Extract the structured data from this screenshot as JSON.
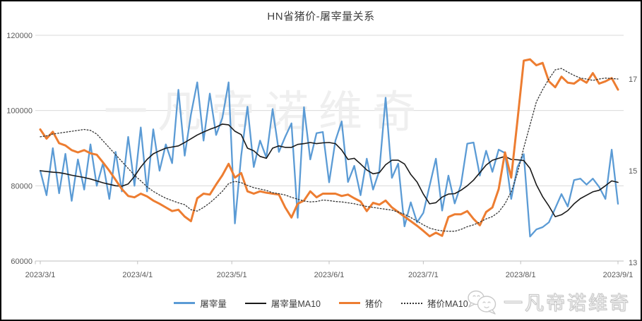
{
  "chart": {
    "title": "HN省猪价-屠宰量关系",
    "left_axis": {
      "tick_labels": [
        "120000",
        "100000",
        "80000",
        "60000"
      ],
      "tick_values": [
        120000,
        100000,
        80000,
        60000
      ]
    },
    "right_axis": {
      "tick_labels": [
        "17",
        "15",
        "13"
      ],
      "tick_values": [
        17,
        15,
        13
      ]
    },
    "x_axis": {
      "tick_labels": [
        "2023/3/1",
        "2023/4/1",
        "2023/5/1",
        "2023/6/1",
        "2023/7/1",
        "2023/8/1",
        "2023/9/1"
      ],
      "tick_day_offsets": [
        0,
        31,
        61,
        92,
        122,
        153,
        184
      ]
    },
    "colors": {
      "grid": "#D9D9D9",
      "axis": "#BFBFBF",
      "tick_text": "#595959",
      "title_text": "#404040",
      "blue": "#5B9BD5",
      "orange": "#ED7D31",
      "black": "#1A1A1A",
      "dotted": "#333333"
    }
  },
  "chart_data": {
    "type": "line",
    "title": "HN省猪价-屠宰量关系",
    "x_start": "2023/3/1",
    "x_end": "2023/9/1",
    "x_sample_interval_days": 2,
    "x_tick_labels": [
      "2023/3/1",
      "2023/4/1",
      "2023/5/1",
      "2023/6/1",
      "2023/7/1",
      "2023/8/1",
      "2023/9/1"
    ],
    "left_axis": {
      "range": [
        60000,
        120000
      ],
      "tick_step": 20000,
      "applies_to": "屠宰量"
    },
    "right_axis": {
      "range": [
        13,
        17.9
      ],
      "visible_ticks": [
        13,
        15,
        17
      ],
      "applies_to": "猪价"
    },
    "grid": true,
    "legend_position": "bottom",
    "series": [
      {
        "name": "屠宰量",
        "axis": "left",
        "color": "#5B9BD5",
        "style": "solid",
        "width": 2.3,
        "values": [
          84000,
          77500,
          90000,
          78000,
          88500,
          76000,
          87000,
          79000,
          91000,
          80000,
          86000,
          76500,
          89000,
          78500,
          93000,
          80000,
          95500,
          78500,
          95000,
          84000,
          91000,
          86000,
          105500,
          88000,
          99000,
          107500,
          92000,
          104500,
          93500,
          98000,
          107500,
          70000,
          88000,
          101000,
          85000,
          92000,
          87500,
          100400,
          89000,
          93000,
          96600,
          71500,
          100900,
          87000,
          94000,
          94300,
          80900,
          92000,
          97100,
          81000,
          85300,
          77500,
          87200,
          79000,
          84000,
          103400,
          82100,
          85900,
          69200,
          75600,
          70300,
          72800,
          80000,
          87200,
          73400,
          82700,
          75300,
          80300,
          91200,
          91500,
          82700,
          89300,
          83700,
          89600,
          88700,
          76500,
          85000,
          88400,
          66500,
          68400,
          69000,
          70300,
          74000,
          77800,
          74500,
          81500,
          81900,
          80300,
          81900,
          79700,
          76500,
          89600,
          75200
        ]
      },
      {
        "name": "屠宰量MA10",
        "axis": "left",
        "color": "#1A1A1A",
        "style": "solid",
        "width": 1.6,
        "values": [
          84000,
          83800,
          83600,
          83500,
          83200,
          82800,
          82500,
          82200,
          81800,
          81300,
          80800,
          80400,
          80000,
          79900,
          80500,
          82500,
          85000,
          87000,
          88500,
          89300,
          90000,
          90300,
          90600,
          91500,
          92500,
          93500,
          94300,
          95000,
          95600,
          96400,
          96200,
          94500,
          93600,
          90000,
          89300,
          87800,
          87300,
          90000,
          90600,
          90200,
          90200,
          91000,
          91200,
          91500,
          91200,
          91400,
          91500,
          91200,
          89500,
          87000,
          87300,
          85800,
          84200,
          83200,
          83500,
          85600,
          86800,
          86800,
          85800,
          83000,
          81000,
          77800,
          75200,
          75500,
          77000,
          77800,
          77900,
          78800,
          80000,
          81500,
          83500,
          85500,
          86800,
          87300,
          87800,
          87000,
          86900,
          86700,
          84600,
          80300,
          77100,
          74600,
          71800,
          72300,
          73400,
          75200,
          76600,
          77500,
          78400,
          78800,
          80000,
          81300,
          80900
        ]
      },
      {
        "name": "猪价",
        "axis": "right",
        "color": "#ED7D31",
        "style": "solid",
        "width": 3,
        "values": [
          15.9,
          15.7,
          15.85,
          15.6,
          15.55,
          15.45,
          15.4,
          15.45,
          15.38,
          15.35,
          15.18,
          15.0,
          14.8,
          14.6,
          14.45,
          14.42,
          14.5,
          14.44,
          14.35,
          14.28,
          14.2,
          14.12,
          14.15,
          14.0,
          13.9,
          14.4,
          14.5,
          14.48,
          14.7,
          14.9,
          15.15,
          14.85,
          14.95,
          14.55,
          14.5,
          14.55,
          14.52,
          14.5,
          14.48,
          14.2,
          13.98,
          14.28,
          14.35,
          14.55,
          14.42,
          14.5,
          14.5,
          14.5,
          14.45,
          14.48,
          14.4,
          14.33,
          14.12,
          14.3,
          14.26,
          14.35,
          14.2,
          14.1,
          14.0,
          13.9,
          13.8,
          13.69,
          13.57,
          13.65,
          13.58,
          13.99,
          14.05,
          14.05,
          14.12,
          13.95,
          13.81,
          14.1,
          14.2,
          14.6,
          15.4,
          14.85,
          16.1,
          17.4,
          17.43,
          17.3,
          17.35,
          16.95,
          16.82,
          17.05,
          16.92,
          16.9,
          17.0,
          16.92,
          17.13,
          16.9,
          16.95,
          17.02,
          16.77
        ]
      },
      {
        "name": "猪价MA10",
        "axis": "right",
        "color": "#333333",
        "style": "dotted",
        "width": 1.3,
        "values": [
          15.74,
          15.76,
          15.8,
          15.82,
          15.84,
          15.86,
          15.88,
          15.9,
          15.88,
          15.8,
          15.65,
          15.5,
          15.35,
          15.2,
          15.05,
          14.9,
          14.78,
          14.65,
          14.55,
          14.47,
          14.4,
          14.35,
          14.3,
          14.26,
          14.15,
          14.12,
          14.2,
          14.3,
          14.42,
          14.55,
          14.72,
          14.77,
          14.74,
          14.68,
          14.63,
          14.6,
          14.57,
          14.52,
          14.5,
          14.47,
          14.42,
          14.38,
          14.34,
          14.32,
          14.33,
          14.36,
          14.35,
          14.33,
          14.32,
          14.3,
          14.28,
          14.25,
          14.22,
          14.2,
          14.18,
          14.16,
          14.14,
          14.1,
          14.05,
          13.98,
          13.9,
          13.82,
          13.75,
          13.71,
          13.69,
          13.68,
          13.68,
          13.72,
          13.78,
          13.82,
          13.88,
          13.95,
          14.0,
          14.1,
          14.28,
          14.54,
          14.95,
          15.5,
          16.0,
          16.5,
          16.77,
          17.0,
          17.2,
          17.23,
          17.15,
          17.08,
          17.02,
          17.0,
          16.97,
          17.0,
          17.02,
          17.01,
          17.0
        ]
      }
    ]
  },
  "watermark": {
    "center_text": "一凡帝诺维奇",
    "badge_text": "一凡帝诺维奇",
    "badge_icon": "chat-bubbles-icon"
  }
}
